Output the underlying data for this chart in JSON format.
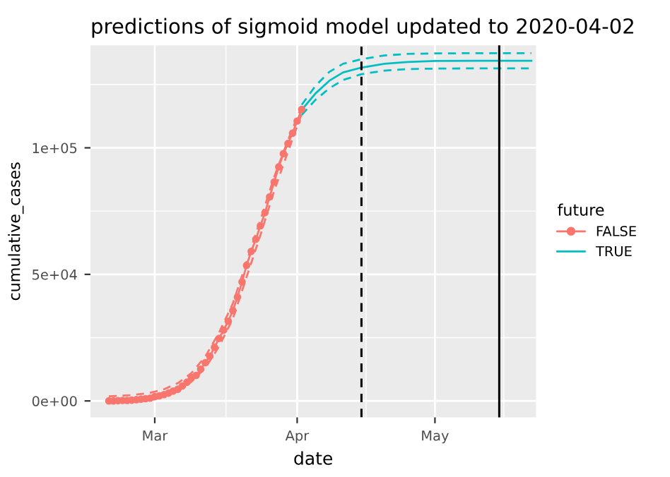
{
  "chart_data": {
    "type": "line",
    "title": "predictions of sigmoid model updated to 2020-04-02",
    "xlabel": "date",
    "ylabel": "cumulative_cases",
    "legend_title": "future",
    "series": [
      {
        "name": "FALSE",
        "color": "#f8766d",
        "marker": "circle",
        "line_style": "solid",
        "x": [
          "2020-02-20",
          "2020-02-21",
          "2020-02-22",
          "2020-02-23",
          "2020-02-24",
          "2020-02-25",
          "2020-02-26",
          "2020-02-27",
          "2020-02-28",
          "2020-02-29",
          "2020-03-01",
          "2020-03-02",
          "2020-03-03",
          "2020-03-04",
          "2020-03-05",
          "2020-03-06",
          "2020-03-07",
          "2020-03-08",
          "2020-03-09",
          "2020-03-10",
          "2020-03-11",
          "2020-03-12",
          "2020-03-13",
          "2020-03-14",
          "2020-03-15",
          "2020-03-16",
          "2020-03-17",
          "2020-03-18",
          "2020-03-19",
          "2020-03-20",
          "2020-03-21",
          "2020-03-22",
          "2020-03-23",
          "2020-03-24",
          "2020-03-25",
          "2020-03-26",
          "2020-03-27",
          "2020-03-28",
          "2020-03-29",
          "2020-03-30",
          "2020-03-31",
          "2020-04-01",
          "2020-04-02"
        ],
        "values": [
          0,
          0,
          100,
          200,
          200,
          300,
          500,
          700,
          900,
          1100,
          1700,
          2000,
          2500,
          3100,
          3900,
          4600,
          5900,
          7400,
          9200,
          10100,
          12500,
          15100,
          17700,
          21200,
          24700,
          28000,
          31500,
          35700,
          41000,
          47000,
          53600,
          59100,
          63900,
          69200,
          74400,
          80600,
          86500,
          92500,
          97700,
          101700,
          105800,
          110600,
          115200
        ]
      },
      {
        "color": "#f8766d",
        "marker": "none",
        "line_style": "dashed",
        "x": [
          "2020-02-20",
          "2020-02-25",
          "2020-02-29",
          "2020-03-03",
          "2020-03-06",
          "2020-03-09",
          "2020-03-12",
          "2020-03-15",
          "2020-03-18",
          "2020-03-21",
          "2020-03-24",
          "2020-03-27",
          "2020-03-30",
          "2020-04-02"
        ],
        "values": [
          1800,
          2300,
          3200,
          4600,
          7000,
          11000,
          17500,
          27000,
          38500,
          55000,
          71500,
          88500,
          103000,
          116500
        ]
      },
      {
        "color": "#f8766d",
        "marker": "none",
        "line_style": "dashed",
        "x": [
          "2020-02-20",
          "2020-02-25",
          "2020-02-29",
          "2020-03-03",
          "2020-03-06",
          "2020-03-09",
          "2020-03-12",
          "2020-03-15",
          "2020-03-18",
          "2020-03-21",
          "2020-03-24",
          "2020-03-27",
          "2020-03-30",
          "2020-04-02"
        ],
        "values": [
          0,
          0,
          300,
          1600,
          3800,
          7600,
          13000,
          21500,
          32500,
          49000,
          65500,
          83000,
          98500,
          113500
        ]
      },
      {
        "name": "TRUE",
        "color": "#00bfc4",
        "marker": "none",
        "line_style": "solid",
        "x": [
          "2020-04-02",
          "2020-04-05",
          "2020-04-08",
          "2020-04-11",
          "2020-04-15",
          "2020-04-20",
          "2020-04-25",
          "2020-05-01",
          "2020-05-10",
          "2020-05-22"
        ],
        "values": [
          115000,
          121500,
          126500,
          129800,
          131700,
          133200,
          133900,
          134300,
          134400,
          134400
        ]
      },
      {
        "color": "#00bfc4",
        "marker": "none",
        "line_style": "dashed",
        "x": [
          "2020-04-02",
          "2020-04-05",
          "2020-04-08",
          "2020-04-11",
          "2020-04-15",
          "2020-04-20",
          "2020-04-25",
          "2020-05-01",
          "2020-05-10",
          "2020-05-22"
        ],
        "values": [
          117000,
          124500,
          130000,
          133200,
          135000,
          136500,
          137100,
          137300,
          137400,
          137400
        ]
      },
      {
        "color": "#00bfc4",
        "marker": "none",
        "line_style": "dashed",
        "x": [
          "2020-04-02",
          "2020-04-05",
          "2020-04-08",
          "2020-04-11",
          "2020-04-15",
          "2020-04-20",
          "2020-04-25",
          "2020-05-01",
          "2020-05-10",
          "2020-05-22"
        ],
        "values": [
          113000,
          119000,
          123500,
          126800,
          129100,
          130500,
          131100,
          131300,
          131400,
          131400
        ]
      }
    ],
    "xlim": [
      "2020-02-16",
      "2020-05-23"
    ],
    "xticks": [
      {
        "value": "2020-03-01",
        "label": "Mar"
      },
      {
        "value": "2020-04-01",
        "label": "Apr"
      },
      {
        "value": "2020-05-01",
        "label": "May"
      }
    ],
    "ylim": [
      -6500,
      140500
    ],
    "yticks": [
      {
        "value": 0,
        "label": "0e+00"
      },
      {
        "value": 50000,
        "label": "5e+04"
      },
      {
        "value": 100000,
        "label": "1e+05"
      }
    ],
    "ref_lines": [
      {
        "axis": "x",
        "value": "2020-04-15",
        "color": "#000000",
        "line_style": "dashed"
      },
      {
        "axis": "x",
        "value": "2020-05-15",
        "color": "#000000",
        "line_style": "solid"
      }
    ],
    "grid": true,
    "legend": "right"
  }
}
